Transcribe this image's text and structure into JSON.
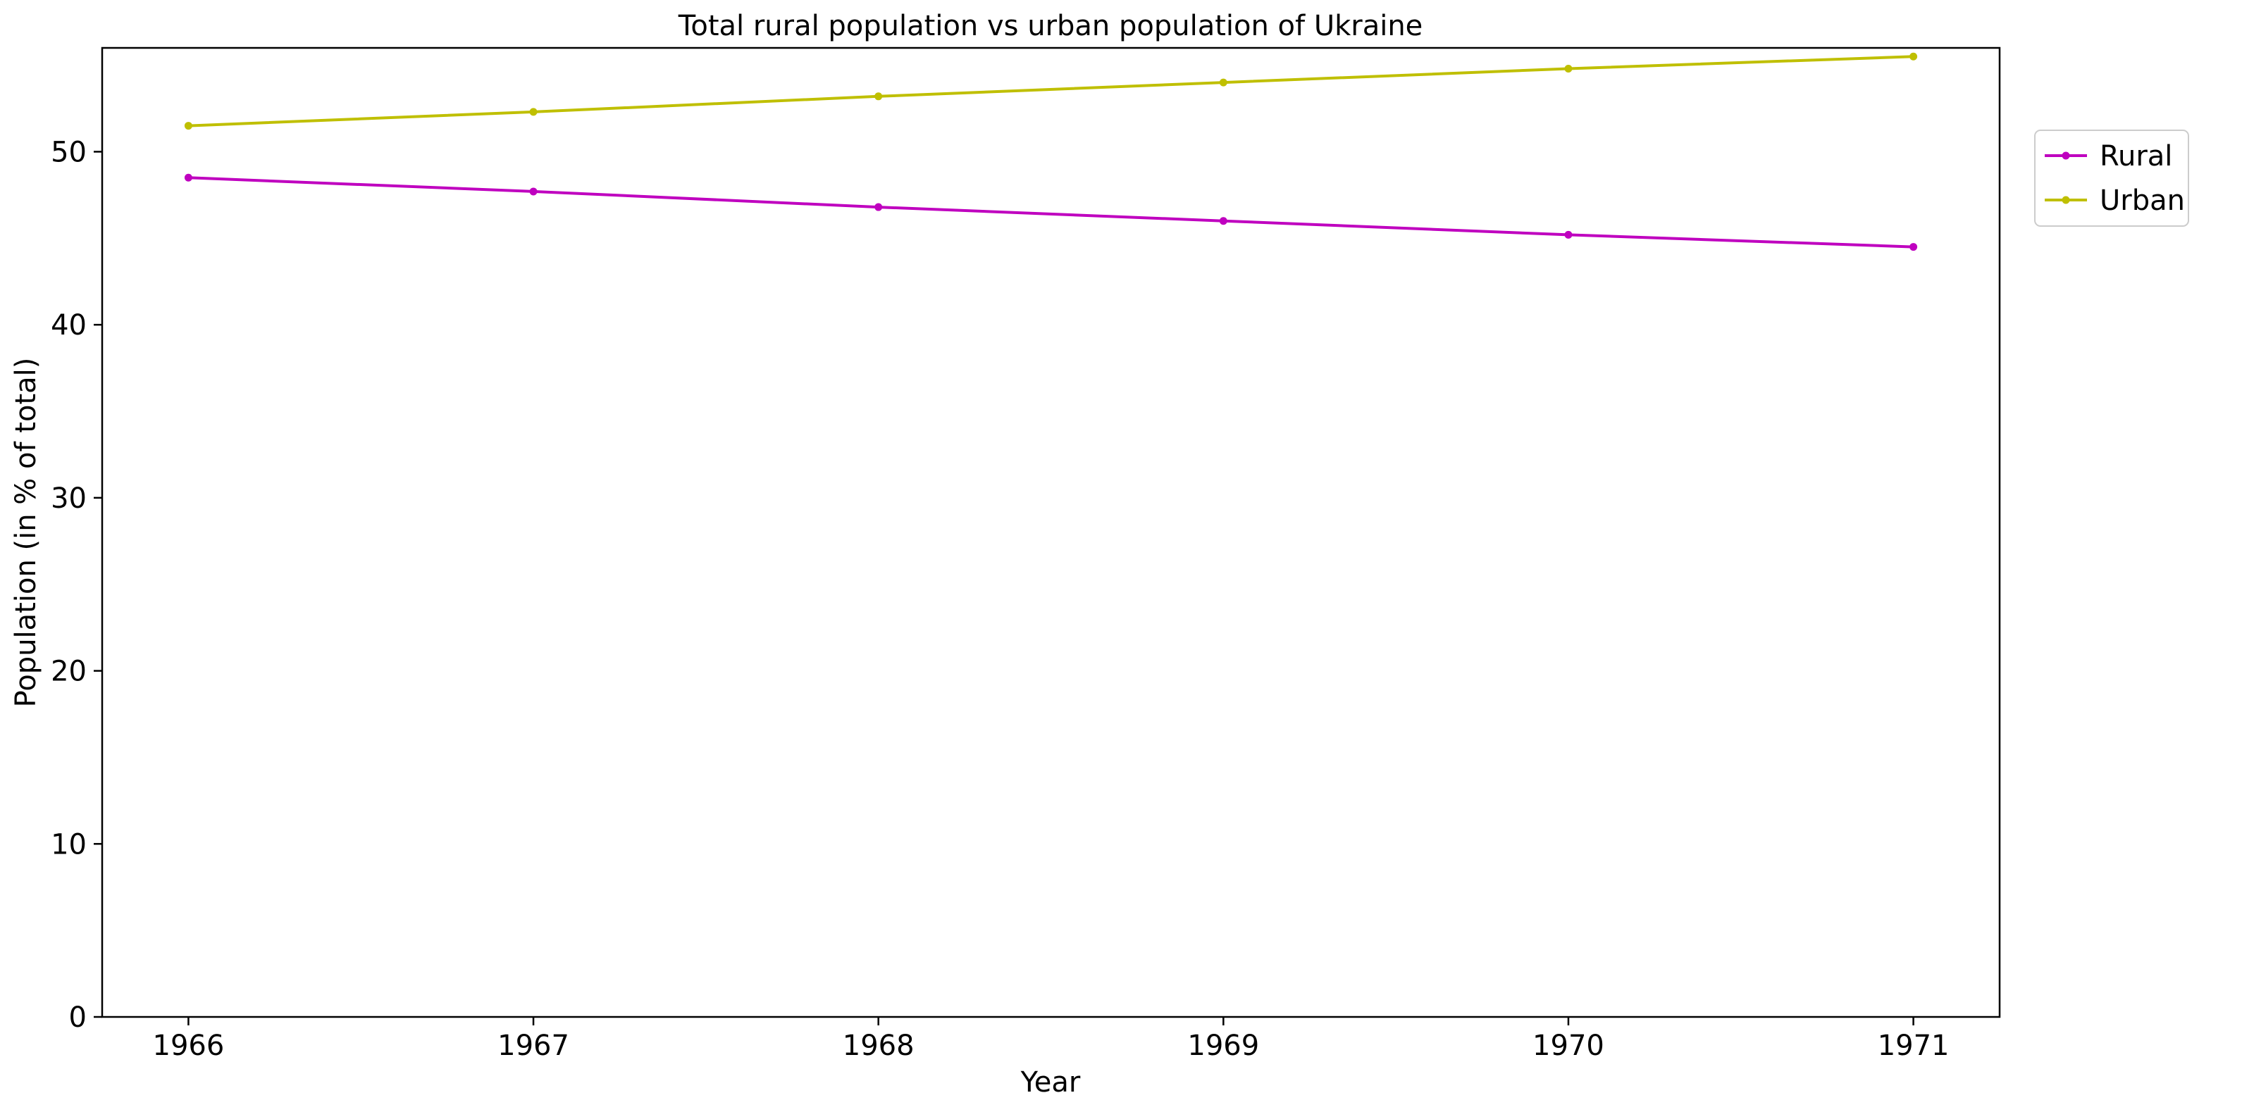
{
  "chart_data": {
    "type": "line",
    "title": "Total rural population vs urban population of Ukraine",
    "xlabel": "Year",
    "ylabel": "Population (in % of total)",
    "x": [
      1966,
      1967,
      1968,
      1969,
      1970,
      1971
    ],
    "xlim": [
      1965.75,
      1971.25
    ],
    "ylim": [
      0,
      56
    ],
    "x_ticks": [
      "1966",
      "1967",
      "1968",
      "1969",
      "1970",
      "1971"
    ],
    "y_ticks": [
      "0",
      "10",
      "20",
      "30",
      "40",
      "50"
    ],
    "grid": false,
    "legend_position": "upper-right-outside",
    "series": [
      {
        "name": "Rural",
        "color": "#bf00bf",
        "values": [
          48.5,
          47.7,
          46.8,
          46.0,
          45.2,
          44.5
        ]
      },
      {
        "name": "Urban",
        "color": "#bfbf00",
        "values": [
          51.5,
          52.3,
          53.2,
          54.0,
          54.8,
          55.5
        ]
      }
    ]
  }
}
